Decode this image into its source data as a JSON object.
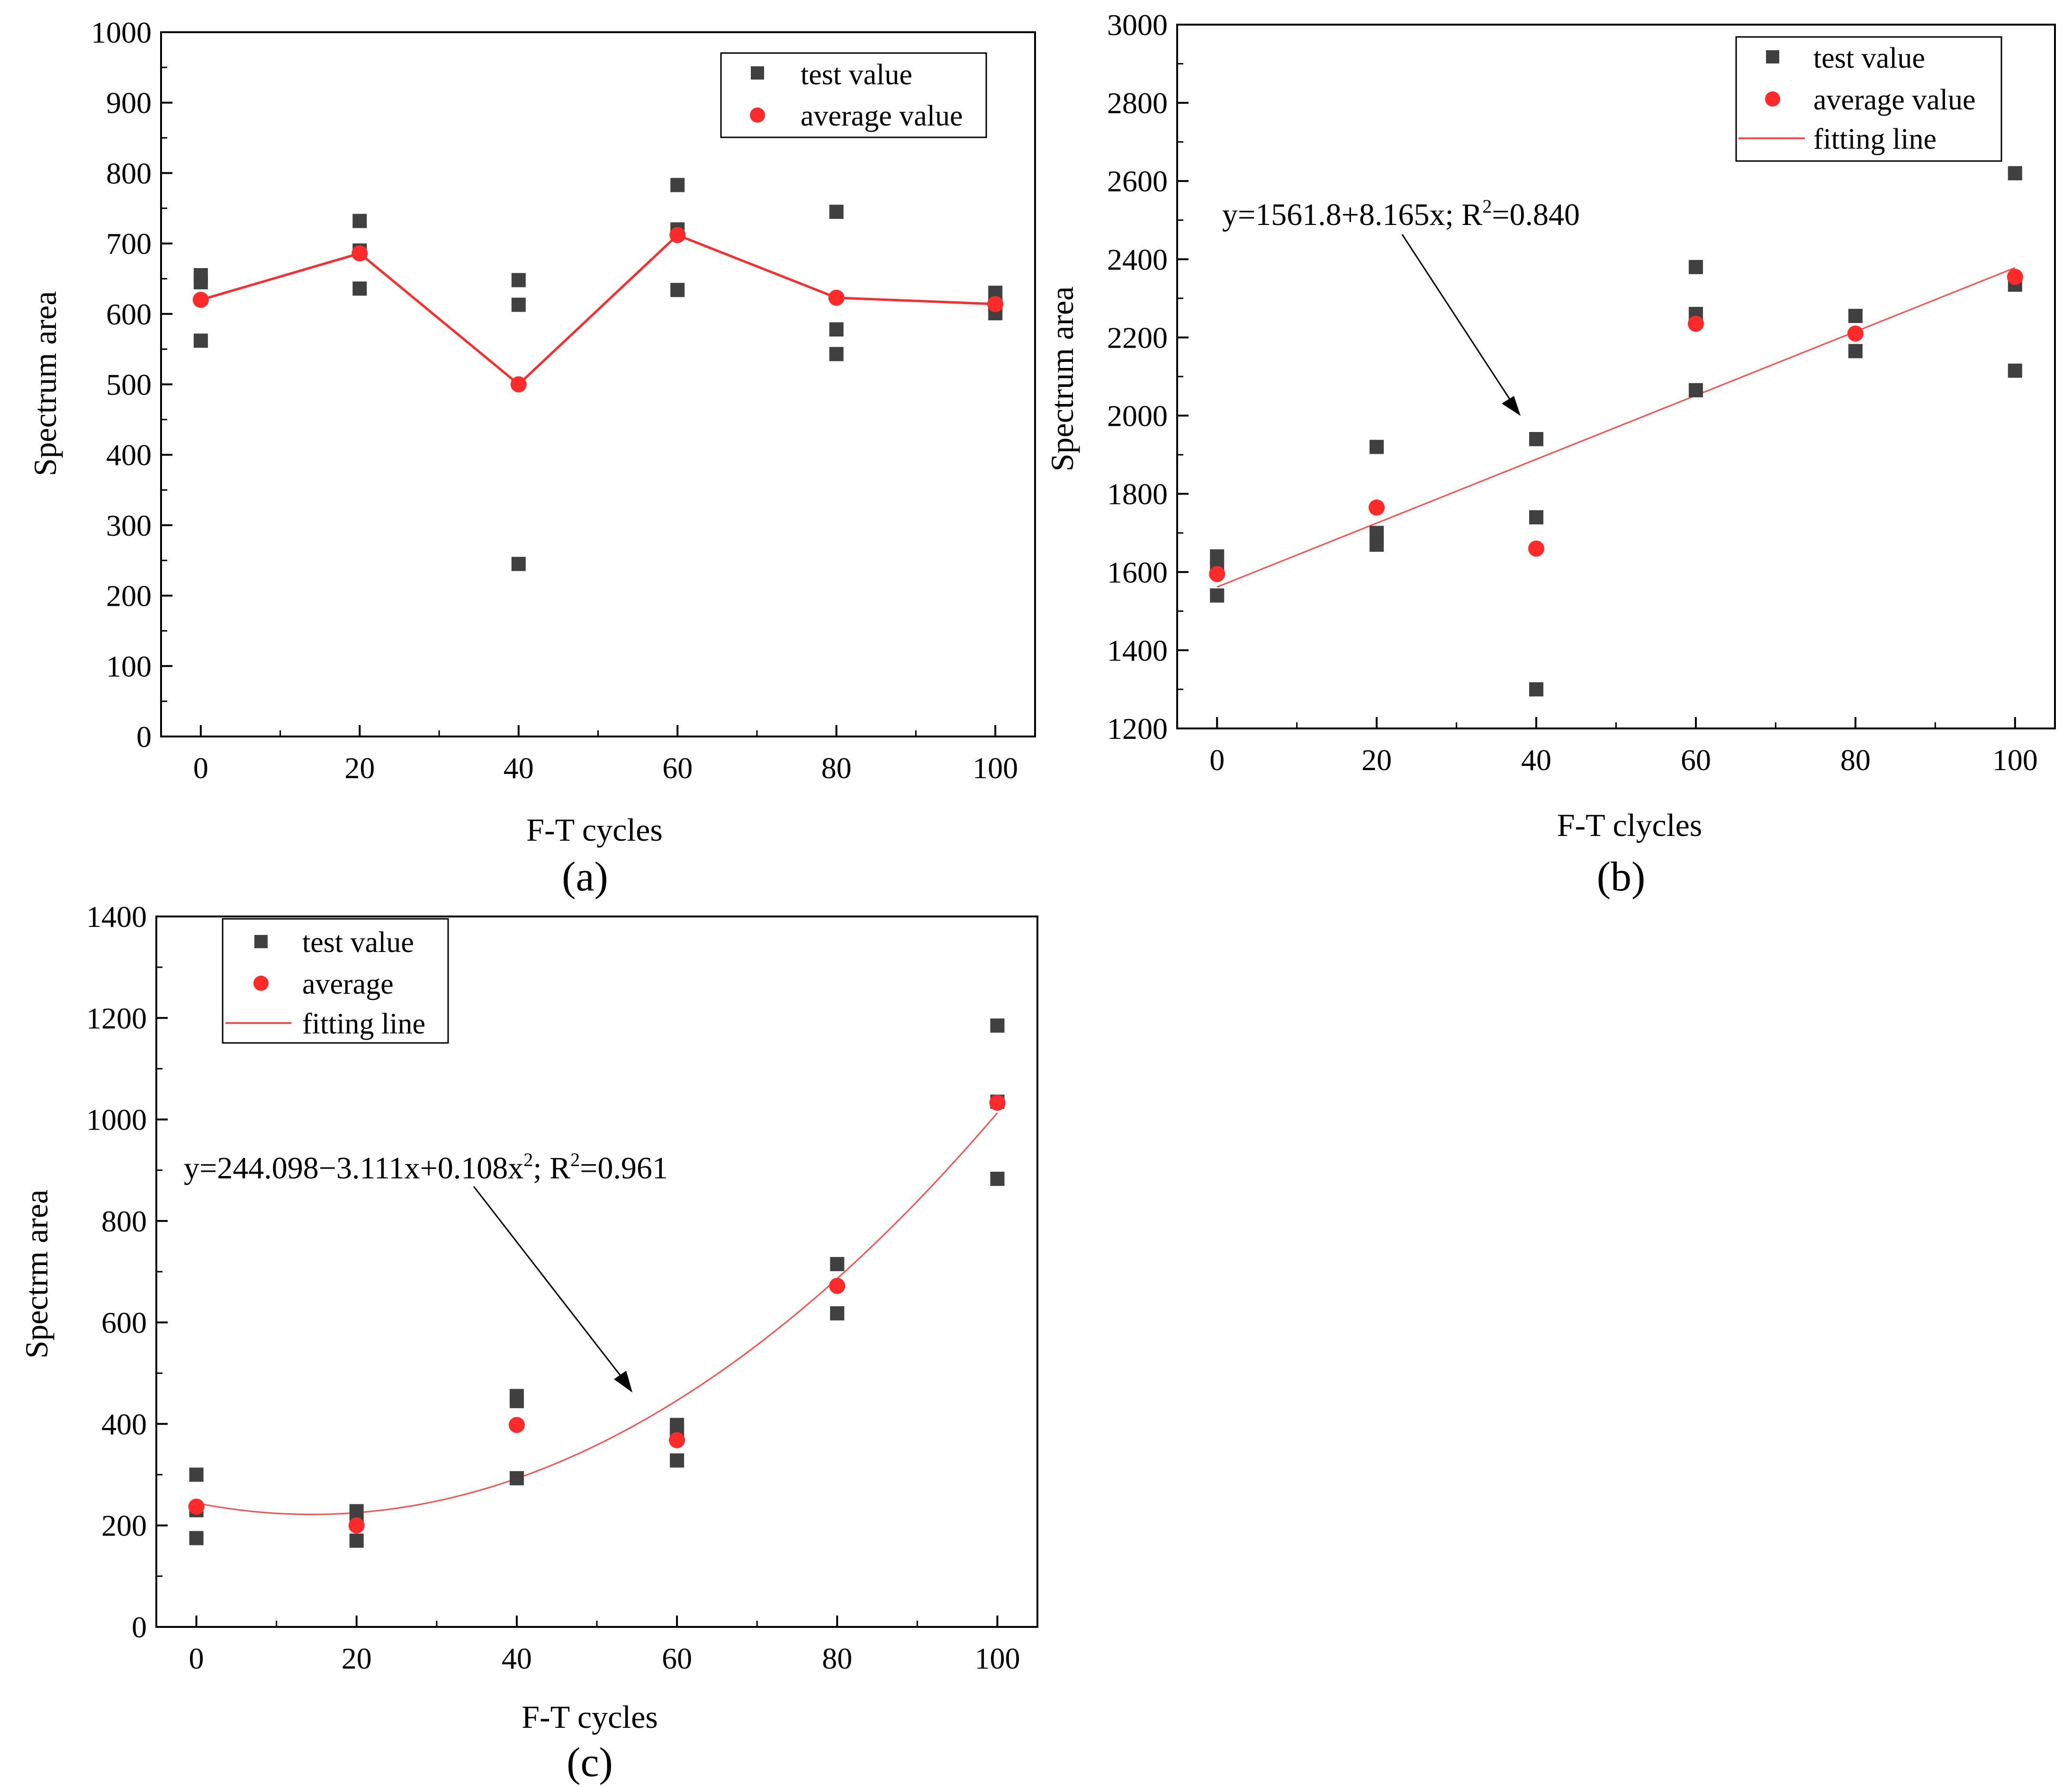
{
  "colors": {
    "test": "#404040",
    "average": "#ff2a2a",
    "line": "#ff4d4d",
    "axis": "#000000"
  },
  "chart_data": [
    {
      "id": "a",
      "type": "scatter",
      "panel_label": "(a)",
      "xlabel": "F-T cycles",
      "ylabel": "Spectrum area",
      "xlim": [
        -5,
        105
      ],
      "ylim": [
        0,
        1000
      ],
      "xticks": [
        0,
        20,
        40,
        60,
        80,
        100
      ],
      "yticks": [
        0,
        100,
        200,
        300,
        400,
        500,
        600,
        700,
        800,
        900,
        1000
      ],
      "xtick_labels": [
        "0",
        "20",
        "40",
        "60",
        "80",
        "100"
      ],
      "ytick_labels": [
        "0",
        "100",
        "200",
        "300",
        "400",
        "500",
        "600",
        "700",
        "800",
        "900",
        "1000"
      ],
      "legend": {
        "test": "test value",
        "average": "average value"
      },
      "series": [
        {
          "name": "test value",
          "kind": "square",
          "points": [
            [
              0,
              655
            ],
            [
              0,
              645
            ],
            [
              0,
              562
            ],
            [
              20,
              732
            ],
            [
              20,
              690
            ],
            [
              20,
              636
            ],
            [
              40,
              648
            ],
            [
              40,
              613
            ],
            [
              40,
              245
            ],
            [
              60,
              783
            ],
            [
              60,
              720
            ],
            [
              60,
              634
            ],
            [
              80,
              745
            ],
            [
              80,
              578
            ],
            [
              80,
              543
            ],
            [
              100,
              630
            ],
            [
              100,
              613
            ],
            [
              100,
              601
            ]
          ]
        },
        {
          "name": "average value",
          "kind": "circle-line",
          "points": [
            [
              0,
              620
            ],
            [
              20,
              686
            ],
            [
              40,
              500
            ],
            [
              60,
              712
            ],
            [
              80,
              623
            ],
            [
              100,
              614
            ]
          ]
        }
      ]
    },
    {
      "id": "b",
      "type": "scatter",
      "panel_label": "(b)",
      "xlabel": "F-T clycles",
      "ylabel": "Spectrum area",
      "xlim": [
        -5,
        105
      ],
      "ylim": [
        1200,
        3000
      ],
      "xticks": [
        0,
        20,
        40,
        60,
        80,
        100
      ],
      "yticks": [
        1200,
        1400,
        1600,
        1800,
        2000,
        2200,
        2400,
        2600,
        2800,
        3000
      ],
      "xtick_labels": [
        "0",
        "20",
        "40",
        "60",
        "80",
        "100"
      ],
      "ytick_labels": [
        "1200",
        "1400",
        "1600",
        "1800",
        "2000",
        "2200",
        "2400",
        "2600",
        "2800",
        "3000"
      ],
      "legend": {
        "test": "test value",
        "average": "average value",
        "fit": "fitting line"
      },
      "annotation": {
        "main": "y=1561.8+8.165x;  R",
        "sup": "2",
        "tail": "=0.840"
      },
      "fit": {
        "kind": "linear",
        "coefficients": [
          1561.8,
          8.165
        ]
      },
      "series": [
        {
          "name": "test value",
          "kind": "square",
          "points": [
            [
              0,
              1640
            ],
            [
              0,
              1610
            ],
            [
              0,
              1540
            ],
            [
              20,
              1920
            ],
            [
              20,
              1700
            ],
            [
              20,
              1670
            ],
            [
              40,
              1940
            ],
            [
              40,
              1740
            ],
            [
              40,
              1300
            ],
            [
              60,
              2380
            ],
            [
              60,
              2260
            ],
            [
              60,
              2065
            ],
            [
              80,
              2255
            ],
            [
              80,
              2165
            ],
            [
              100,
              2620
            ],
            [
              100,
              2335
            ],
            [
              100,
              2115
            ]
          ]
        },
        {
          "name": "average value",
          "kind": "circle",
          "points": [
            [
              0,
              1595
            ],
            [
              20,
              1765
            ],
            [
              40,
              1660
            ],
            [
              60,
              2235
            ],
            [
              80,
              2210
            ],
            [
              100,
              2355
            ]
          ]
        }
      ]
    },
    {
      "id": "c",
      "type": "scatter",
      "panel_label": "(c)",
      "xlabel": "F-T cycles",
      "ylabel": "Spectrm area",
      "xlim": [
        -5,
        105
      ],
      "ylim": [
        0,
        1400
      ],
      "xticks": [
        0,
        20,
        40,
        60,
        80,
        100
      ],
      "yticks": [
        0,
        200,
        400,
        600,
        800,
        1000,
        1200,
        1400
      ],
      "xtick_labels": [
        "0",
        "20",
        "40",
        "60",
        "80",
        "100"
      ],
      "ytick_labels": [
        "0",
        "200",
        "400",
        "600",
        "800",
        "1000",
        "1200",
        "1400"
      ],
      "legend": {
        "test": "test value",
        "average": "average",
        "fit": "fitting line"
      },
      "annotation": {
        "main": "y=244.098−3.111x+0.108x",
        "sup": "2",
        "tail": ";  R",
        "sup2": "2",
        "tail2": "=0.961"
      },
      "fit": {
        "kind": "quadratic",
        "coefficients": [
          244.098,
          -3.111,
          0.108
        ]
      },
      "series": [
        {
          "name": "test value",
          "kind": "square",
          "points": [
            [
              0,
              300
            ],
            [
              0,
              230
            ],
            [
              0,
              175
            ],
            [
              20,
              228
            ],
            [
              20,
              205
            ],
            [
              20,
              170
            ],
            [
              40,
              455
            ],
            [
              40,
              445
            ],
            [
              40,
              293
            ],
            [
              60,
              398
            ],
            [
              60,
              385
            ],
            [
              60,
              328
            ],
            [
              80,
              715
            ],
            [
              80,
              618
            ],
            [
              100,
              1185
            ],
            [
              100,
              1035
            ],
            [
              100,
              883
            ]
          ]
        },
        {
          "name": "average",
          "kind": "circle",
          "points": [
            [
              0,
              237
            ],
            [
              20,
              200
            ],
            [
              40,
              398
            ],
            [
              60,
              368
            ],
            [
              80,
              672
            ],
            [
              100,
              1033
            ]
          ]
        }
      ]
    }
  ]
}
